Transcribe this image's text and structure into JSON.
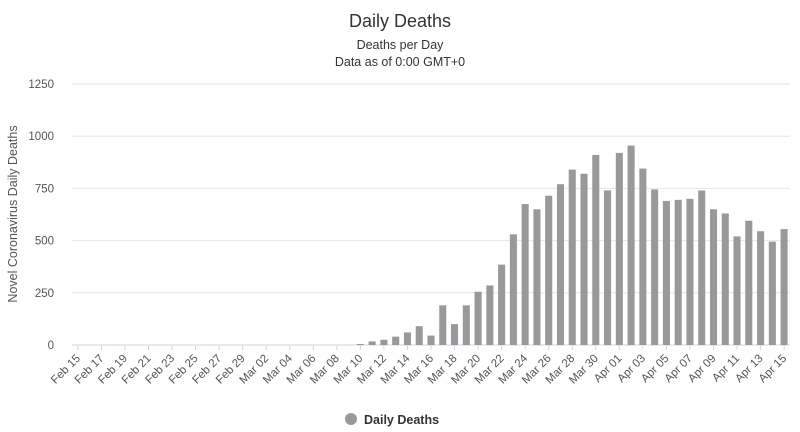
{
  "chart_data": {
    "type": "bar",
    "title": "Daily Deaths",
    "subtitle": [
      "Deaths per Day",
      "Data as of 0:00 GMT+0"
    ],
    "y_label": "Novel Coronavirus Daily Deaths",
    "categories": [
      "Feb 15",
      null,
      "Feb 17",
      null,
      "Feb 19",
      null,
      "Feb 21",
      null,
      "Feb 23",
      null,
      "Feb 25",
      null,
      "Feb 27",
      null,
      "Feb 29",
      null,
      "Mar 02",
      null,
      "Mar 04",
      null,
      "Mar 06",
      null,
      "Mar 08",
      null,
      "Mar 10",
      null,
      "Mar 12",
      null,
      "Mar 14",
      null,
      "Mar 16",
      null,
      "Mar 18",
      null,
      "Mar 20",
      null,
      "Mar 22",
      null,
      "Mar 24",
      null,
      "Mar 26",
      null,
      "Mar 28",
      null,
      "Mar 30",
      null,
      "Apr 01",
      null,
      "Apr 03",
      null,
      "Apr 05",
      null,
      "Apr 07",
      null,
      "Apr 09",
      null,
      "Apr 11",
      null,
      "Apr 13",
      null,
      "Apr 15"
    ],
    "series": [
      {
        "name": "Daily Deaths",
        "color": "#999999",
        "values": [
          0,
          0,
          0,
          0,
          0,
          0,
          0,
          0,
          0,
          0,
          0,
          0,
          0,
          0,
          0,
          0,
          0,
          0,
          0,
          0,
          0,
          0,
          0,
          0,
          5,
          17,
          25,
          40,
          60,
          90,
          45,
          190,
          100,
          190,
          255,
          285,
          385,
          530,
          675,
          650,
          715,
          770,
          840,
          820,
          910,
          740,
          920,
          955,
          845,
          745,
          690,
          695,
          700,
          740,
          650,
          630,
          520,
          595,
          545,
          495,
          555
        ]
      }
    ],
    "ylim": [
      0,
      1250
    ],
    "yticks": [
      0,
      250,
      500,
      750,
      1000,
      1250
    ],
    "grid": true,
    "legend": "bottom"
  }
}
